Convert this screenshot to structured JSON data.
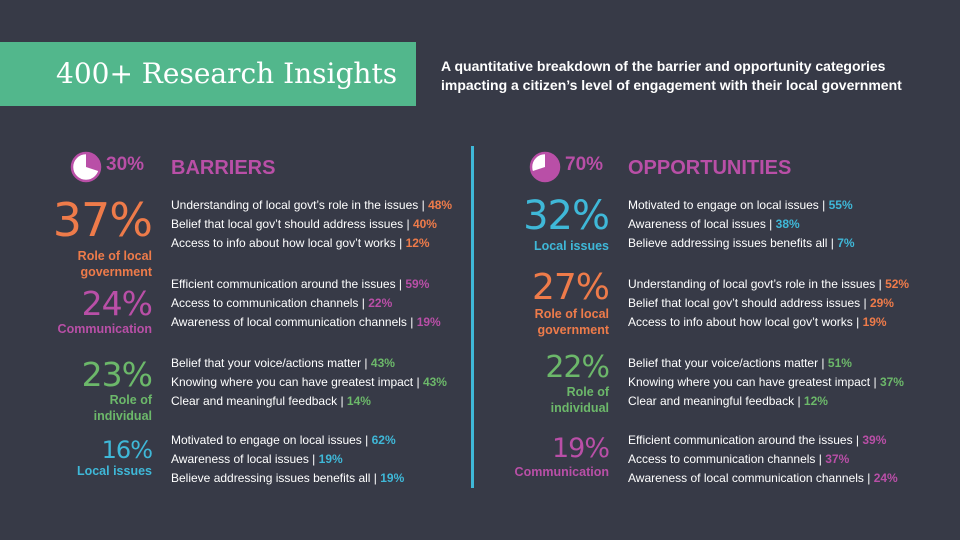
{
  "header": {
    "title": "400+ Research Insights",
    "subtitle": "A quantitative breakdown of the barrier and opportunity categories impacting a citizen’s level of engagement with their local government"
  },
  "colors": {
    "background": "#373a47",
    "banner": "#52b78c",
    "accent_purple": "#b94fa7",
    "orange": "#ee7b4a",
    "green": "#6cb86a",
    "blue": "#3fb8d8"
  },
  "barriers": {
    "percent": "30%",
    "pie_fraction": 0.3,
    "pie_icon": "pie-chart-icon",
    "title": "BARRIERS",
    "groups": [
      {
        "percent": "37%",
        "label_line1": "Role of local",
        "label_line2": "government",
        "items": [
          {
            "text": "Understanding of local govt’s role in the issues |",
            "value": "48%"
          },
          {
            "text": "Belief that local gov’t should address issues |",
            "value": "40%"
          },
          {
            "text": "Access to info about how local gov’t works |",
            "value": "12%"
          }
        ]
      },
      {
        "percent": "24%",
        "label_line1": "Communication",
        "label_line2": "",
        "items": [
          {
            "text": "Efficient communication around the issues |",
            "value": "59%"
          },
          {
            "text": "Access to communication channels |",
            "value": "22%"
          },
          {
            "text": "Awareness of local communication channels |",
            "value": "19%"
          }
        ]
      },
      {
        "percent": "23%",
        "label_line1": "Role of",
        "label_line2": "individual",
        "items": [
          {
            "text": "Belief that your voice/actions matter |",
            "value": "43%"
          },
          {
            "text": "Knowing where you can have greatest impact |",
            "value": "43%"
          },
          {
            "text": "Clear and meaningful feedback |",
            "value": "14%"
          }
        ]
      },
      {
        "percent": "16%",
        "label_line1": "Local issues",
        "label_line2": "",
        "items": [
          {
            "text": "Motivated to engage on local issues |",
            "value": "62%"
          },
          {
            "text": "Awareness of local issues |",
            "value": "19%"
          },
          {
            "text": "Believe addressing issues benefits all |",
            "value": "19%"
          }
        ]
      }
    ]
  },
  "opportunities": {
    "percent": "70%",
    "pie_fraction": 0.7,
    "pie_icon": "pie-chart-icon",
    "title": "OPPORTUNITIES",
    "groups": [
      {
        "percent": "32%",
        "label_line1": "Local issues",
        "label_line2": "",
        "items": [
          {
            "text": "Motivated to engage on local issues |",
            "value": "55%"
          },
          {
            "text": "Awareness of local issues |",
            "value": "38%"
          },
          {
            "text": "Believe addressing issues benefits all |",
            "value": "7%"
          }
        ]
      },
      {
        "percent": "27%",
        "label_line1": "Role of local",
        "label_line2": "government",
        "items": [
          {
            "text": "Understanding of local govt’s role in the issues |",
            "value": "52%"
          },
          {
            "text": "Belief that local gov’t should address issues |",
            "value": "29%"
          },
          {
            "text": "Access to info about how local gov’t works |",
            "value": "19%"
          }
        ]
      },
      {
        "percent": "22%",
        "label_line1": "Role of",
        "label_line2": "individual",
        "items": [
          {
            "text": "Belief that your voice/actions matter |",
            "value": "51%"
          },
          {
            "text": "Knowing where you can have greatest impact |",
            "value": "37%"
          },
          {
            "text": "Clear and meaningful feedback |",
            "value": "12%"
          }
        ]
      },
      {
        "percent": "19%",
        "label_line1": "Communication",
        "label_line2": "",
        "items": [
          {
            "text": "Efficient communication around the issues |",
            "value": "39%"
          },
          {
            "text": "Access to communication channels |",
            "value": "37%"
          },
          {
            "text": "Awareness of local communication channels |",
            "value": "24%"
          }
        ]
      }
    ]
  }
}
